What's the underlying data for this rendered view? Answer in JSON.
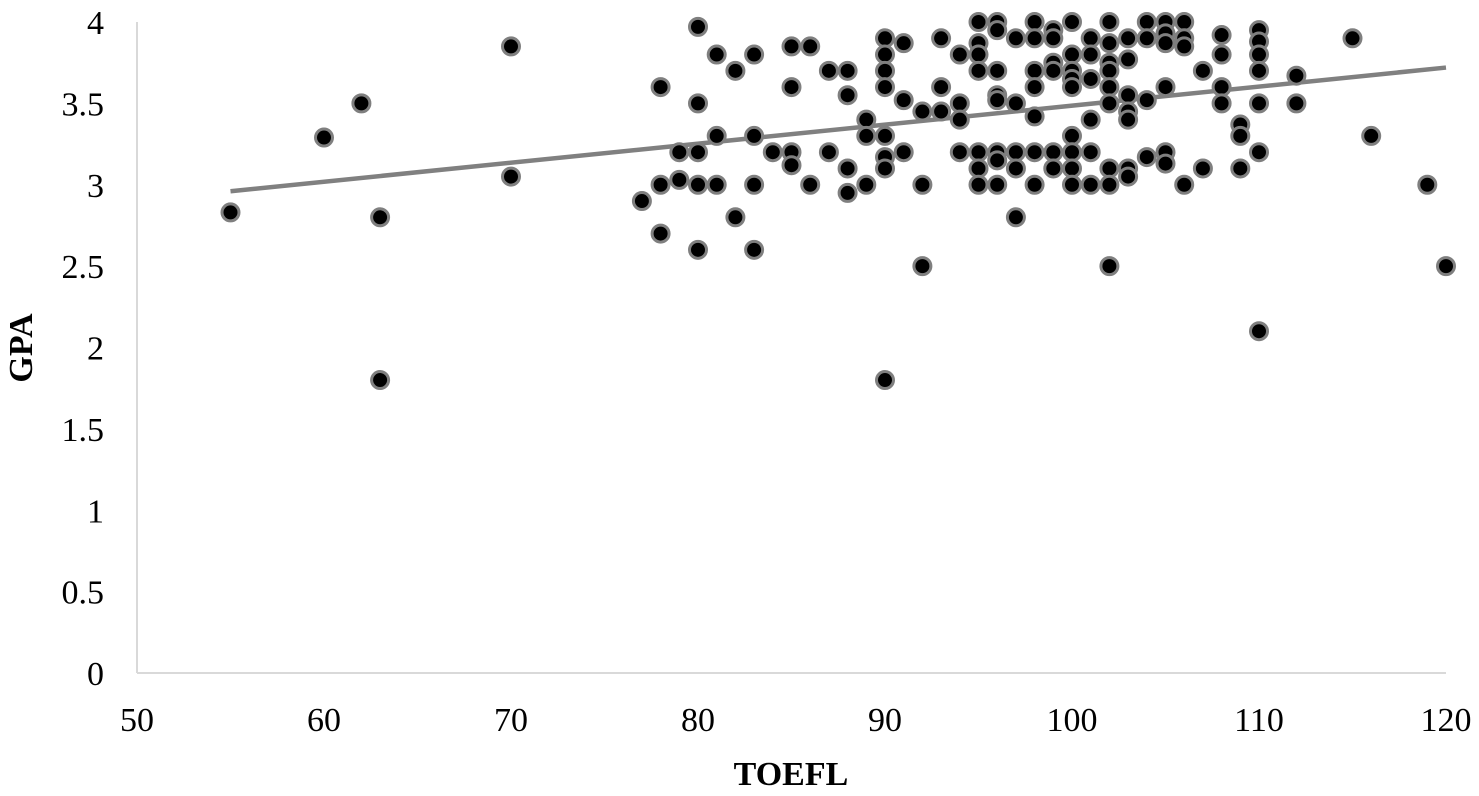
{
  "chart_data": {
    "type": "scatter",
    "title": "",
    "xlabel": "TOEFL",
    "ylabel": "GPA",
    "xlim": [
      50,
      120
    ],
    "ylim": [
      0,
      4
    ],
    "x_ticks": [
      "50",
      "60",
      "70",
      "80",
      "90",
      "100",
      "110",
      "120"
    ],
    "y_ticks": [
      "0",
      "0.5",
      "1",
      "1.5",
      "2",
      "2.5",
      "3",
      "3.5",
      "4"
    ],
    "grid": false,
    "legend": "none",
    "colors": {
      "point_fill": "#000000",
      "point_stroke": "#7f7f7f",
      "trendline": "#808080",
      "axis": "#d9d9d9"
    },
    "trendline": {
      "type": "linear",
      "from": [
        55,
        2.96
      ],
      "to": [
        120,
        3.72
      ]
    },
    "series": [
      {
        "points": [
          [
            55,
            2.83
          ],
          [
            60,
            3.29
          ],
          [
            62,
            3.5
          ],
          [
            63,
            2.8
          ],
          [
            63,
            1.8
          ],
          [
            70,
            3.85
          ],
          [
            70,
            3.05
          ],
          [
            77,
            2.9
          ],
          [
            78,
            3.6
          ],
          [
            78,
            3.0
          ],
          [
            78,
            2.7
          ],
          [
            79,
            3.2
          ],
          [
            79,
            3.03
          ],
          [
            80,
            3.97
          ],
          [
            80,
            3.5
          ],
          [
            80,
            3.2
          ],
          [
            80,
            3.0
          ],
          [
            80,
            2.6
          ],
          [
            81,
            3.8
          ],
          [
            81,
            3.3
          ],
          [
            81,
            3.0
          ],
          [
            82,
            3.7
          ],
          [
            82,
            2.8
          ],
          [
            83,
            3.8
          ],
          [
            83,
            3.3
          ],
          [
            83,
            3.0
          ],
          [
            83,
            2.6
          ],
          [
            84,
            3.2
          ],
          [
            85,
            3.85
          ],
          [
            85,
            3.6
          ],
          [
            85,
            3.2
          ],
          [
            85,
            3.12
          ],
          [
            86,
            3.85
          ],
          [
            86,
            3.0
          ],
          [
            87,
            3.7
          ],
          [
            87,
            3.2
          ],
          [
            88,
            3.7
          ],
          [
            88,
            3.55
          ],
          [
            88,
            3.1
          ],
          [
            88,
            2.95
          ],
          [
            89,
            3.4
          ],
          [
            89,
            3.3
          ],
          [
            89,
            3.0
          ],
          [
            90,
            3.9
          ],
          [
            90,
            3.8
          ],
          [
            90,
            3.7
          ],
          [
            90,
            3.6
          ],
          [
            90,
            3.3
          ],
          [
            90,
            3.17
          ],
          [
            90,
            3.1
          ],
          [
            90,
            1.8
          ],
          [
            91,
            3.87
          ],
          [
            91,
            3.52
          ],
          [
            91,
            3.2
          ],
          [
            92,
            3.45
          ],
          [
            92,
            3.0
          ],
          [
            92,
            2.5
          ],
          [
            93,
            3.9
          ],
          [
            93,
            3.6
          ],
          [
            93,
            3.45
          ],
          [
            94,
            3.8
          ],
          [
            94,
            3.5
          ],
          [
            94,
            3.4
          ],
          [
            94,
            3.2
          ],
          [
            95,
            4.0
          ],
          [
            95,
            3.87
          ],
          [
            95,
            3.8
          ],
          [
            95,
            3.7
          ],
          [
            95,
            3.2
          ],
          [
            95,
            3.1
          ],
          [
            95,
            3.0
          ],
          [
            96,
            4.0
          ],
          [
            96,
            3.95
          ],
          [
            96,
            3.7
          ],
          [
            96,
            3.55
          ],
          [
            96,
            3.52
          ],
          [
            96,
            3.2
          ],
          [
            96,
            3.15
          ],
          [
            96,
            3.0
          ],
          [
            97,
            3.9
          ],
          [
            97,
            3.5
          ],
          [
            97,
            3.2
          ],
          [
            97,
            3.1
          ],
          [
            97,
            2.8
          ],
          [
            98,
            4.0
          ],
          [
            98,
            3.9
          ],
          [
            98,
            3.7
          ],
          [
            98,
            3.6
          ],
          [
            98,
            3.42
          ],
          [
            98,
            3.2
          ],
          [
            98,
            3.0
          ],
          [
            99,
            3.95
          ],
          [
            99,
            3.9
          ],
          [
            99,
            3.75
          ],
          [
            99,
            3.7
          ],
          [
            99,
            3.2
          ],
          [
            99,
            3.1
          ],
          [
            100,
            4.0
          ],
          [
            100,
            3.8
          ],
          [
            100,
            3.7
          ],
          [
            100,
            3.65
          ],
          [
            100,
            3.6
          ],
          [
            100,
            3.3
          ],
          [
            100,
            3.2
          ],
          [
            100,
            3.1
          ],
          [
            100,
            3.0
          ],
          [
            101,
            3.9
          ],
          [
            101,
            3.8
          ],
          [
            101,
            3.65
          ],
          [
            101,
            3.4
          ],
          [
            101,
            3.2
          ],
          [
            101,
            3.0
          ],
          [
            102,
            4.0
          ],
          [
            102,
            3.87
          ],
          [
            102,
            3.75
          ],
          [
            102,
            3.7
          ],
          [
            102,
            3.6
          ],
          [
            102,
            3.5
          ],
          [
            102,
            3.1
          ],
          [
            102,
            3.0
          ],
          [
            102,
            2.5
          ],
          [
            103,
            3.9
          ],
          [
            103,
            3.77
          ],
          [
            103,
            3.55
          ],
          [
            103,
            3.45
          ],
          [
            103,
            3.4
          ],
          [
            103,
            3.1
          ],
          [
            103,
            3.05
          ],
          [
            104,
            4.0
          ],
          [
            104,
            3.9
          ],
          [
            104,
            3.52
          ],
          [
            104,
            3.17
          ],
          [
            105,
            4.0
          ],
          [
            105,
            3.93
          ],
          [
            105,
            3.87
          ],
          [
            105,
            3.6
          ],
          [
            105,
            3.2
          ],
          [
            105,
            3.13
          ],
          [
            106,
            4.0
          ],
          [
            106,
            3.9
          ],
          [
            106,
            3.85
          ],
          [
            106,
            3.0
          ],
          [
            107,
            3.7
          ],
          [
            107,
            3.1
          ],
          [
            108,
            3.92
          ],
          [
            108,
            3.8
          ],
          [
            108,
            3.6
          ],
          [
            108,
            3.5
          ],
          [
            109,
            3.37
          ],
          [
            109,
            3.3
          ],
          [
            109,
            3.1
          ],
          [
            110,
            3.95
          ],
          [
            110,
            3.88
          ],
          [
            110,
            3.8
          ],
          [
            110,
            3.7
          ],
          [
            110,
            3.5
          ],
          [
            110,
            3.2
          ],
          [
            110,
            2.1
          ],
          [
            112,
            3.67
          ],
          [
            112,
            3.5
          ],
          [
            115,
            3.9
          ],
          [
            116,
            3.3
          ],
          [
            119,
            3.0
          ],
          [
            120,
            2.5
          ]
        ]
      }
    ]
  }
}
